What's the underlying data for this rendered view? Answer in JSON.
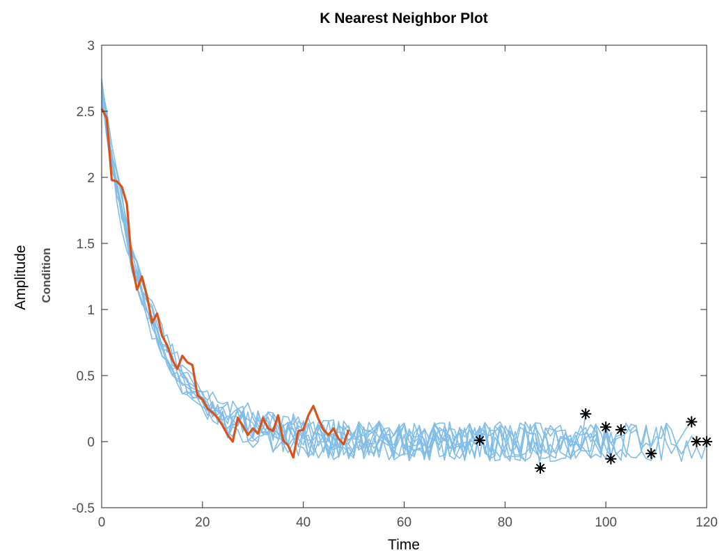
{
  "chart_data": {
    "type": "line",
    "title": "K Nearest Neighbor Plot",
    "xlabel": "Time",
    "ylabel": "Amplitude",
    "ylabel_secondary": "Condition",
    "xlim": [
      0,
      120
    ],
    "ylim": [
      -0.5,
      3
    ],
    "x_ticks": [
      0,
      20,
      40,
      60,
      80,
      100,
      120
    ],
    "x_tick_labels": [
      "0",
      "20",
      "40",
      "60",
      "80",
      "100",
      "120"
    ],
    "y_ticks": [
      -0.5,
      0,
      0.5,
      1,
      1.5,
      2,
      2.5,
      3
    ],
    "y_tick_labels": [
      "-0.5",
      "0",
      "0.5",
      "1",
      "1.5",
      "2",
      "2.5",
      "3"
    ],
    "grid": false,
    "colors": {
      "neighbors": "#80bde9",
      "test_series": "#d95319",
      "end_markers": "#000000",
      "axes": "#262626",
      "tick_text": "#4d4d4d"
    },
    "neighbor_end_points": [
      {
        "x": 75,
        "y": 0.01
      },
      {
        "x": 87,
        "y": -0.2
      },
      {
        "x": 96,
        "y": 0.21
      },
      {
        "x": 100,
        "y": 0.11
      },
      {
        "x": 101,
        "y": -0.13
      },
      {
        "x": 103,
        "y": 0.09
      },
      {
        "x": 109,
        "y": -0.09
      },
      {
        "x": 117,
        "y": 0.15
      },
      {
        "x": 118,
        "y": 0.0
      },
      {
        "x": 120,
        "y": 0.0
      }
    ],
    "test_series": {
      "x": [
        0,
        1,
        2,
        3,
        4,
        5,
        6,
        7,
        8,
        9,
        10,
        11,
        12,
        13,
        14,
        15,
        16,
        17,
        18,
        19,
        20,
        21,
        22,
        23,
        24,
        25,
        26,
        27,
        28,
        29,
        30,
        31,
        32,
        33,
        34,
        35,
        36,
        37,
        38,
        39,
        40,
        41,
        42,
        43,
        44,
        45,
        46,
        47,
        48,
        49
      ],
      "y": [
        2.52,
        2.45,
        1.98,
        1.97,
        1.93,
        1.8,
        1.35,
        1.15,
        1.25,
        1.1,
        0.9,
        0.97,
        0.8,
        0.73,
        0.62,
        0.55,
        0.65,
        0.6,
        0.58,
        0.35,
        0.32,
        0.25,
        0.22,
        0.18,
        0.12,
        0.05,
        0.0,
        0.18,
        0.12,
        0.05,
        0.1,
        0.06,
        0.18,
        0.1,
        0.08,
        0.2,
        0.01,
        -0.03,
        -0.12,
        0.08,
        0.09,
        0.2,
        0.27,
        0.17,
        0.09,
        0.05,
        0.1,
        0.02,
        -0.02,
        0.09
      ]
    }
  }
}
